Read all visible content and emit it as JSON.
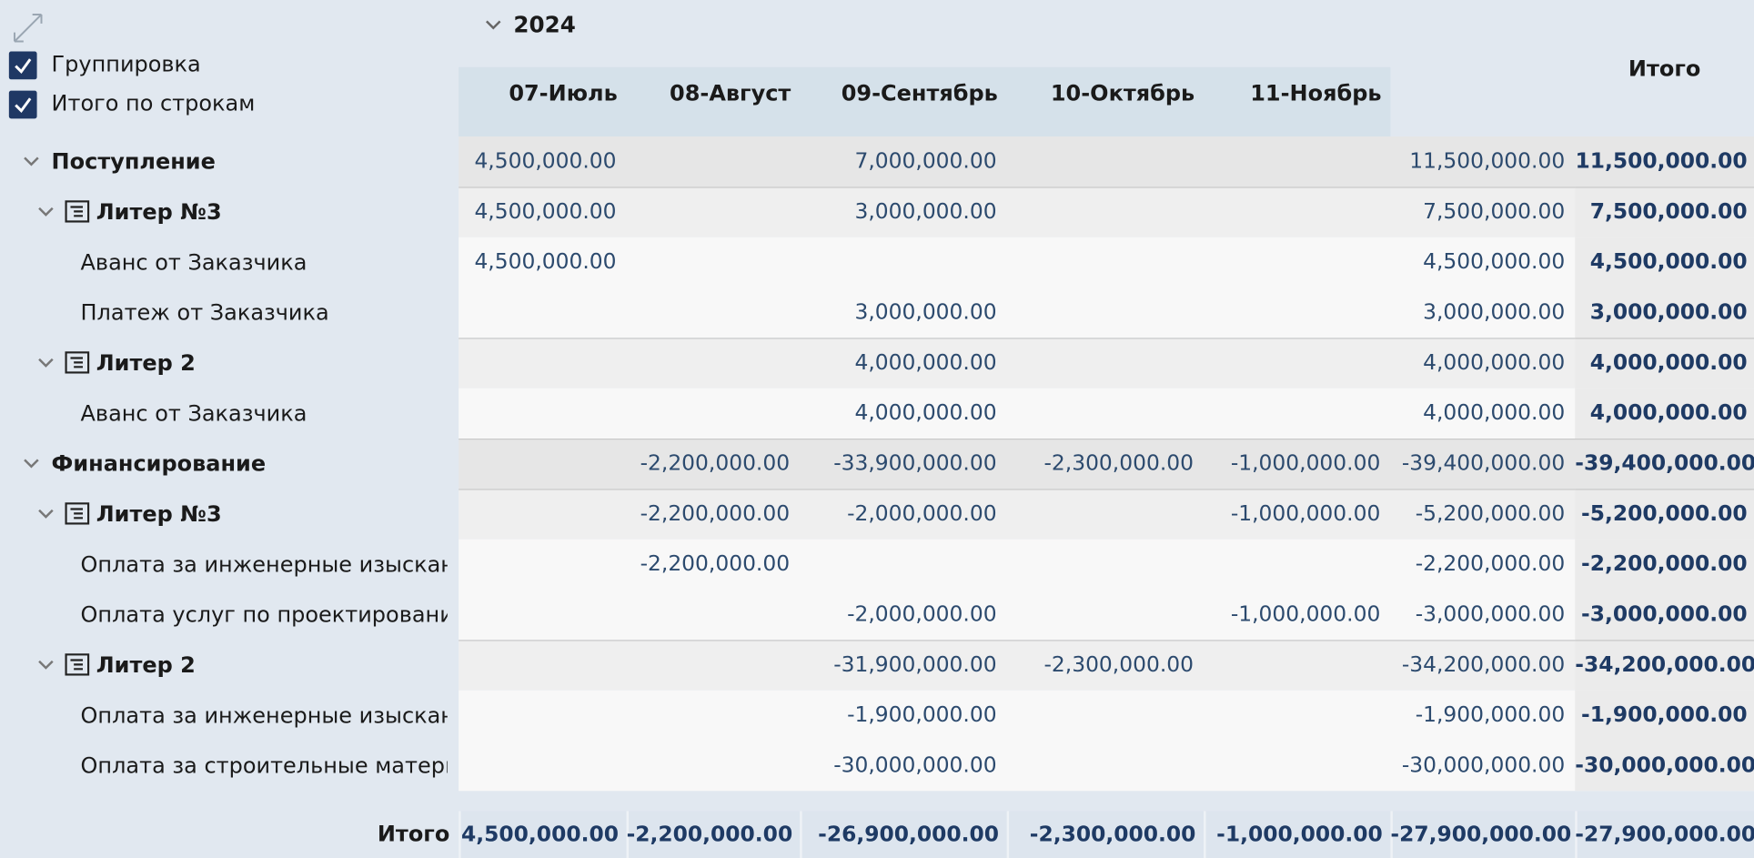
{
  "toolbar": {
    "options": [
      {
        "label": "Группировка",
        "checked": true
      },
      {
        "label": "Итого по строкам",
        "checked": true
      }
    ]
  },
  "table": {
    "year": "2024",
    "columns": [
      "07-Июль",
      "08-Август",
      "09-Сентябрь",
      "10-Октябрь",
      "11-Ноябрь"
    ],
    "total_header": "Итого",
    "rows": [
      {
        "label": "Поступление",
        "level": 0,
        "cells": [
          "4,500,000.00",
          null,
          "7,000,000.00",
          null,
          null,
          "11,500,000.00",
          "11,500,000.00"
        ]
      },
      {
        "label": "Литер №3",
        "level": 1,
        "cells": [
          "4,500,000.00",
          null,
          "3,000,000.00",
          null,
          null,
          "7,500,000.00",
          "7,500,000.00"
        ]
      },
      {
        "label": "Аванс от Заказчика",
        "level": 2,
        "cells": [
          "4,500,000.00",
          null,
          null,
          null,
          null,
          "4,500,000.00",
          "4,500,000.00"
        ]
      },
      {
        "label": "Платеж от Заказчика",
        "level": 2,
        "cells": [
          null,
          null,
          "3,000,000.00",
          null,
          null,
          "3,000,000.00",
          "3,000,000.00"
        ]
      },
      {
        "label": "Литер 2",
        "level": 1,
        "cells": [
          null,
          null,
          "4,000,000.00",
          null,
          null,
          "4,000,000.00",
          "4,000,000.00"
        ]
      },
      {
        "label": "Аванс от Заказчика",
        "level": 2,
        "cells": [
          null,
          null,
          "4,000,000.00",
          null,
          null,
          "4,000,000.00",
          "4,000,000.00"
        ]
      },
      {
        "label": "Финансирование",
        "level": 0,
        "cells": [
          null,
          "-2,200,000.00",
          "-33,900,000.00",
          "-2,300,000.00",
          "-1,000,000.00",
          "-39,400,000.00",
          "-39,400,000.00"
        ]
      },
      {
        "label": "Литер №3",
        "level": 1,
        "cells": [
          null,
          "-2,200,000.00",
          "-2,000,000.00",
          null,
          "-1,000,000.00",
          "-5,200,000.00",
          "-5,200,000.00"
        ]
      },
      {
        "label": "Оплата за инженерные изыскан…",
        "level": 2,
        "cells": [
          null,
          "-2,200,000.00",
          null,
          null,
          null,
          "-2,200,000.00",
          "-2,200,000.00"
        ]
      },
      {
        "label": "Оплата услуг по проектированию",
        "level": 2,
        "cells": [
          null,
          null,
          "-2,000,000.00",
          null,
          "-1,000,000.00",
          "-3,000,000.00",
          "-3,000,000.00"
        ]
      },
      {
        "label": "Литер 2",
        "level": 1,
        "cells": [
          null,
          null,
          "-31,900,000.00",
          "-2,300,000.00",
          null,
          "-34,200,000.00",
          "-34,200,000.00"
        ]
      },
      {
        "label": "Оплата за инженерные изыскан…",
        "level": 2,
        "cells": [
          null,
          null,
          "-1,900,000.00",
          null,
          null,
          "-1,900,000.00",
          "-1,900,000.00"
        ]
      },
      {
        "label": "Оплата за строительные матери…",
        "level": 2,
        "cells": [
          null,
          null,
          "-30,000,000.00",
          null,
          null,
          "-30,000,000.00",
          "-30,000,000.00"
        ]
      }
    ],
    "footer": {
      "label": "Итого",
      "cells": [
        "4,500,000.00",
        "-2,200,000.00",
        "-26,900,000.00",
        "-2,300,000.00",
        "-1,000,000.00",
        "-27,900,000.00",
        "-27,900,000.00"
      ]
    }
  }
}
